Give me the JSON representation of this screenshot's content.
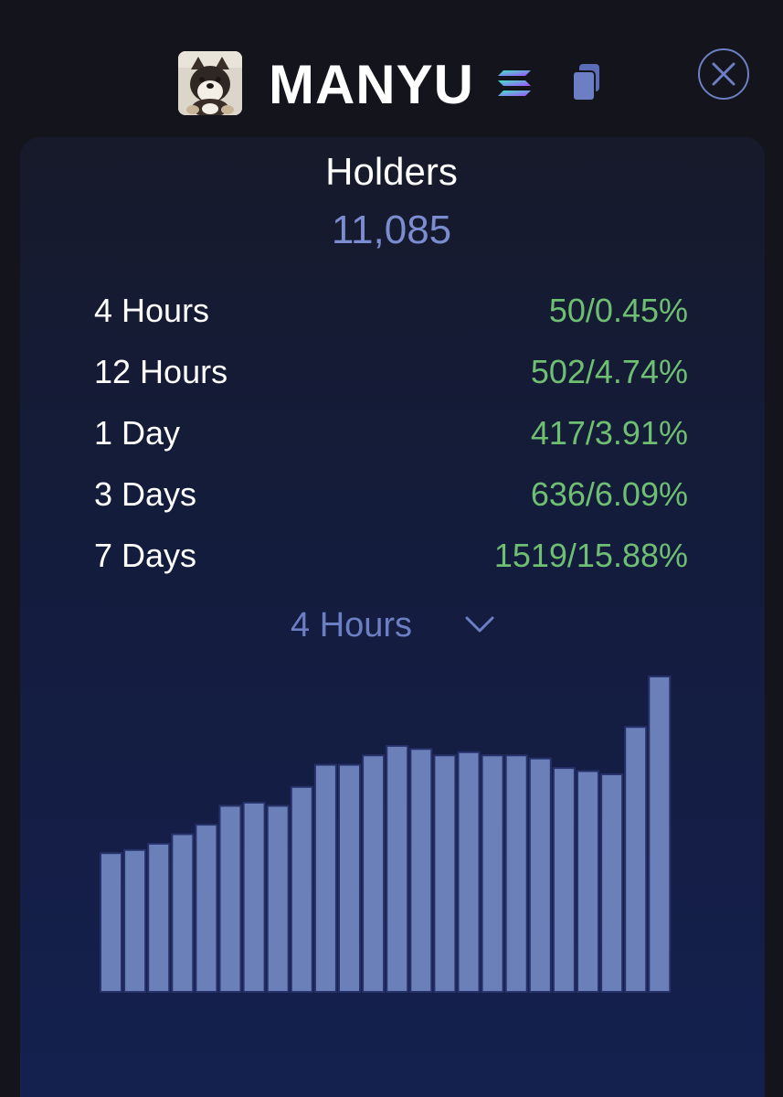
{
  "token": {
    "name": "MANYU",
    "avatar_icon": "shiba-dog-avatar-icon",
    "chain_icon": "solana-icon",
    "copy_icon": "copy-icon",
    "close_icon": "close-icon"
  },
  "holders": {
    "title": "Holders",
    "count": "11,085"
  },
  "stats": [
    {
      "label": "4 Hours",
      "value": "50/0.45%"
    },
    {
      "label": "12 Hours",
      "value": "502/4.74%"
    },
    {
      "label": "1 Day",
      "value": "417/3.91%"
    },
    {
      "label": "3 Days",
      "value": "636/6.09%"
    },
    {
      "label": "7 Days",
      "value": "1519/15.88%"
    }
  ],
  "dropdown": {
    "selected": "4 Hours",
    "icon": "chevron-down-icon"
  },
  "colors": {
    "accent": "#6d7fc4",
    "positive": "#6fbf73",
    "bar": "#6b7fb8",
    "bar_border": "#26316a"
  },
  "chart_data": {
    "type": "bar",
    "title": "",
    "xlabel": "",
    "ylabel": "",
    "ylim": [
      0,
      100
    ],
    "values": [
      44,
      45,
      47,
      50,
      53,
      59,
      60,
      59,
      65,
      72,
      72,
      75,
      78,
      77,
      75,
      76,
      75,
      75,
      74,
      71,
      70,
      69,
      84,
      100
    ]
  }
}
